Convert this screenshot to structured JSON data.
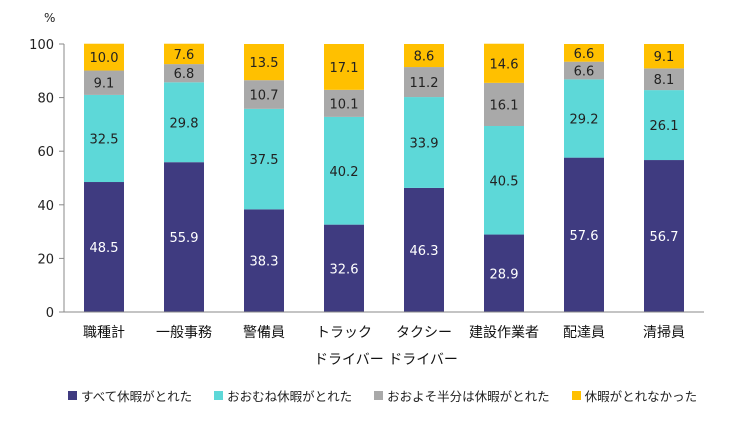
{
  "chart_data": {
    "type": "bar",
    "stacked": true,
    "ylabel": "%",
    "ylim": [
      0,
      100
    ],
    "yticks": [
      0,
      20,
      40,
      60,
      80,
      100
    ],
    "grid": false,
    "legend_position": "bottom",
    "categories": [
      "職種計",
      "一般事務",
      "警備員",
      "トラック",
      "タクシー",
      "建設作業者",
      "配達員",
      "清掃員"
    ],
    "category_sublabel": "ドライバー ドライバー",
    "series": [
      {
        "name": "すべて休暇がとれた",
        "color": "#3f3b80",
        "label_color": "#ffffff",
        "values": [
          48.5,
          55.9,
          38.3,
          32.6,
          46.3,
          28.9,
          57.6,
          56.7
        ]
      },
      {
        "name": "おおむね休暇がとれた",
        "color": "#5dd8d8",
        "label_color": "#222222",
        "values": [
          32.5,
          29.8,
          37.5,
          40.2,
          33.9,
          40.5,
          29.2,
          26.1
        ]
      },
      {
        "name": "おおよそ半分は休暇がとれた",
        "color": "#a9a9a9",
        "label_color": "#222222",
        "values": [
          9.1,
          6.8,
          10.7,
          10.1,
          11.2,
          16.1,
          6.6,
          8.1
        ]
      },
      {
        "name": "休暇がとれなかった",
        "color": "#ffc000",
        "label_color": "#222222",
        "values": [
          10.0,
          7.6,
          13.5,
          17.1,
          8.6,
          14.6,
          6.6,
          9.1
        ]
      }
    ]
  }
}
